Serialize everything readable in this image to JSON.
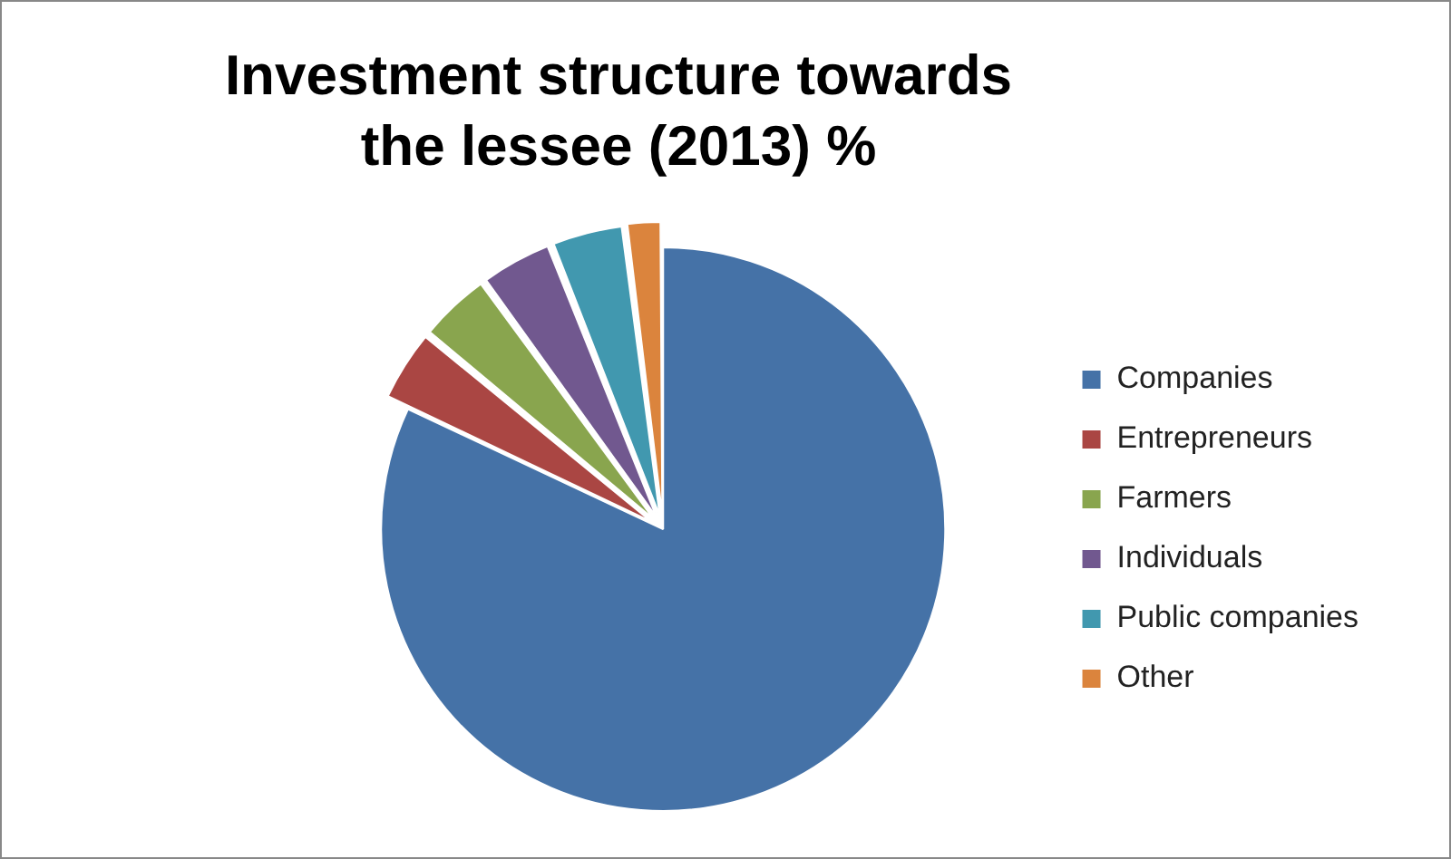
{
  "chart_data": {
    "type": "pie",
    "title": "Investment structure towards the lessee (2013) %",
    "categories": [
      "Companies",
      "Entrepreneurs",
      "Farmers",
      "Individuals",
      "Public companies",
      "Other"
    ],
    "values": [
      82,
      4,
      4,
      4,
      4,
      2
    ],
    "colors": [
      "#4572a7",
      "#aa4643",
      "#89a54e",
      "#71588f",
      "#4198af",
      "#db843d"
    ],
    "legend": "right"
  }
}
